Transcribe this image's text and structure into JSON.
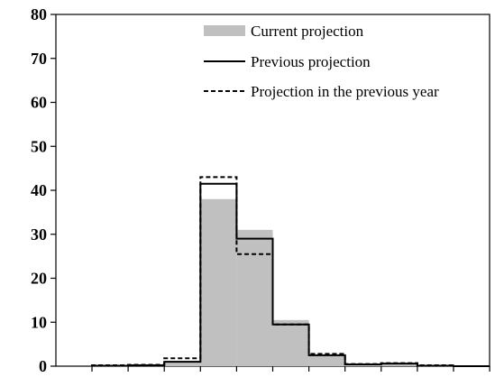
{
  "chart_data": {
    "type": "bar",
    "title": "",
    "xlabel": "",
    "ylabel": "",
    "ylim": [
      0,
      80
    ],
    "yticks": [
      "0",
      "10",
      "20",
      "30",
      "40",
      "50",
      "60",
      "70",
      "80"
    ],
    "bins": 11,
    "legend_position": "top-right",
    "series": [
      {
        "name": "Current projection",
        "style": "filled",
        "color": "#c0c0c0",
        "values": [
          0.2,
          0.3,
          1.2,
          38.0,
          31.0,
          10.5,
          2.5,
          0.3,
          0.7,
          0.2,
          0
        ]
      },
      {
        "name": "Previous projection",
        "style": "solid",
        "color": "#000000",
        "values": [
          0.1,
          0.2,
          1.0,
          41.5,
          29.0,
          9.5,
          2.5,
          0.4,
          0.6,
          0.1,
          0
        ]
      },
      {
        "name": "Projection in the previous year",
        "style": "dashed",
        "color": "#000000",
        "values": [
          0.2,
          0.3,
          1.8,
          43.0,
          25.5,
          9.5,
          2.8,
          0.5,
          0.7,
          0.2,
          0
        ]
      }
    ]
  }
}
